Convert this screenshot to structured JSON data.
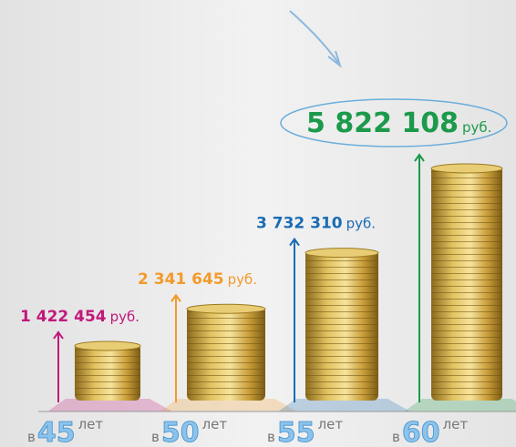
{
  "chart_data": {
    "type": "bar",
    "categories": [
      45,
      50,
      55,
      60
    ],
    "category_prefix": "в",
    "category_suffix": "лет",
    "values": [
      1422454,
      2341645,
      3732310,
      5822108
    ],
    "value_labels": [
      "1 422 454",
      "2 341 645",
      "3 732 310",
      "5 822 108"
    ],
    "value_unit": "руб.",
    "colors": [
      "#c2187c",
      "#f39a2b",
      "#1a6cb3",
      "#1b9a4b"
    ]
  }
}
